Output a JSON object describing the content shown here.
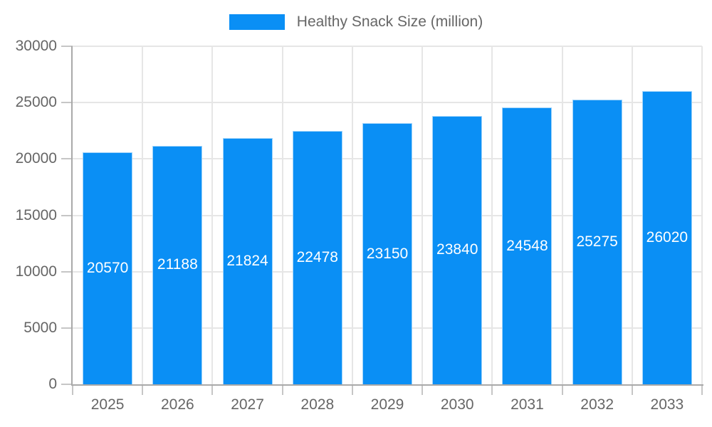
{
  "chart_data": {
    "type": "bar",
    "title": "Healthy Snack Size (million)",
    "series_name": "Healthy Snack Size (million)",
    "categories": [
      "2025",
      "2026",
      "2027",
      "2028",
      "2029",
      "2030",
      "2031",
      "2032",
      "2033"
    ],
    "values": [
      20570,
      21188,
      21824,
      22478,
      23150,
      23840,
      24548,
      25275,
      26020
    ],
    "bar_labels": [
      "20570",
      "21188",
      "21824",
      "22478",
      "23150",
      "23840",
      "24548",
      "25275",
      "26020"
    ],
    "xlabel": "",
    "ylabel": "",
    "ylim": [
      0,
      30000
    ],
    "y_ticks": [
      0,
      5000,
      10000,
      15000,
      20000,
      25000,
      30000
    ],
    "grid": true,
    "legend_position": "top",
    "bar_labels_visible": true,
    "colors": {
      "bar": "#0a8ff5",
      "bar_border": "#9fd3fa",
      "bar_label": "#ffffff",
      "axis_text": "#666666",
      "grid": "#e6e6e6",
      "axis_line": "#a9a9a9",
      "tick": "#c6c6c6",
      "background": "#ffffff"
    }
  }
}
